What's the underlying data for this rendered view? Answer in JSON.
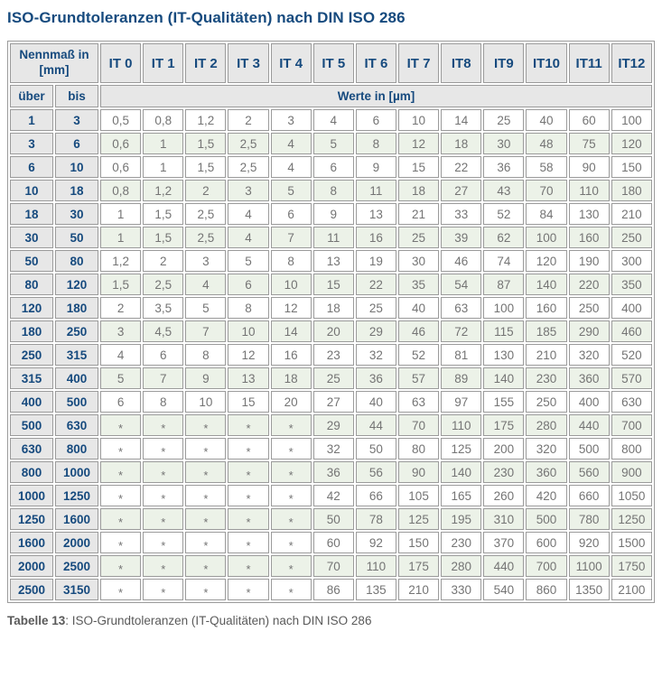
{
  "title": "ISO-Grundtoleranzen (IT-Qualitäten) nach DIN ISO 286",
  "table": {
    "nominal_header": "Nennmaß in [mm]",
    "it_headers": [
      "IT 0",
      "IT 1",
      "IT 2",
      "IT 3",
      "IT 4",
      "IT 5",
      "IT 6",
      "IT 7",
      "IT8",
      "IT9",
      "IT10",
      "IT11",
      "IT12"
    ],
    "sub_headers": {
      "over": "über",
      "to": "bis",
      "values": "Werte in [µm]"
    },
    "rows": [
      {
        "over": "1",
        "to": "3",
        "values": [
          "0,5",
          "0,8",
          "1,2",
          "2",
          "3",
          "4",
          "6",
          "10",
          "14",
          "25",
          "40",
          "60",
          "100"
        ]
      },
      {
        "over": "3",
        "to": "6",
        "values": [
          "0,6",
          "1",
          "1,5",
          "2,5",
          "4",
          "5",
          "8",
          "12",
          "18",
          "30",
          "48",
          "75",
          "120"
        ]
      },
      {
        "over": "6",
        "to": "10",
        "values": [
          "0,6",
          "1",
          "1,5",
          "2,5",
          "4",
          "6",
          "9",
          "15",
          "22",
          "36",
          "58",
          "90",
          "150"
        ]
      },
      {
        "over": "10",
        "to": "18",
        "values": [
          "0,8",
          "1,2",
          "2",
          "3",
          "5",
          "8",
          "11",
          "18",
          "27",
          "43",
          "70",
          "110",
          "180"
        ]
      },
      {
        "over": "18",
        "to": "30",
        "values": [
          "1",
          "1,5",
          "2,5",
          "4",
          "6",
          "9",
          "13",
          "21",
          "33",
          "52",
          "84",
          "130",
          "210"
        ]
      },
      {
        "over": "30",
        "to": "50",
        "values": [
          "1",
          "1,5",
          "2,5",
          "4",
          "7",
          "11",
          "16",
          "25",
          "39",
          "62",
          "100",
          "160",
          "250"
        ]
      },
      {
        "over": "50",
        "to": "80",
        "values": [
          "1,2",
          "2",
          "3",
          "5",
          "8",
          "13",
          "19",
          "30",
          "46",
          "74",
          "120",
          "190",
          "300"
        ]
      },
      {
        "over": "80",
        "to": "120",
        "values": [
          "1,5",
          "2,5",
          "4",
          "6",
          "10",
          "15",
          "22",
          "35",
          "54",
          "87",
          "140",
          "220",
          "350"
        ]
      },
      {
        "over": "120",
        "to": "180",
        "values": [
          "2",
          "3,5",
          "5",
          "8",
          "12",
          "18",
          "25",
          "40",
          "63",
          "100",
          "160",
          "250",
          "400"
        ]
      },
      {
        "over": "180",
        "to": "250",
        "values": [
          "3",
          "4,5",
          "7",
          "10",
          "14",
          "20",
          "29",
          "46",
          "72",
          "115",
          "185",
          "290",
          "460"
        ]
      },
      {
        "over": "250",
        "to": "315",
        "values": [
          "4",
          "6",
          "8",
          "12",
          "16",
          "23",
          "32",
          "52",
          "81",
          "130",
          "210",
          "320",
          "520"
        ]
      },
      {
        "over": "315",
        "to": "400",
        "values": [
          "5",
          "7",
          "9",
          "13",
          "18",
          "25",
          "36",
          "57",
          "89",
          "140",
          "230",
          "360",
          "570"
        ]
      },
      {
        "over": "400",
        "to": "500",
        "values": [
          "6",
          "8",
          "10",
          "15",
          "20",
          "27",
          "40",
          "63",
          "97",
          "155",
          "250",
          "400",
          "630"
        ]
      },
      {
        "over": "500",
        "to": "630",
        "values": [
          "*",
          "*",
          "*",
          "*",
          "*",
          "29",
          "44",
          "70",
          "110",
          "175",
          "280",
          "440",
          "700"
        ]
      },
      {
        "over": "630",
        "to": "800",
        "values": [
          "*",
          "*",
          "*",
          "*",
          "*",
          "32",
          "50",
          "80",
          "125",
          "200",
          "320",
          "500",
          "800"
        ]
      },
      {
        "over": "800",
        "to": "1000",
        "values": [
          "*",
          "*",
          "*",
          "*",
          "*",
          "36",
          "56",
          "90",
          "140",
          "230",
          "360",
          "560",
          "900"
        ]
      },
      {
        "over": "1000",
        "to": "1250",
        "values": [
          "*",
          "*",
          "*",
          "*",
          "*",
          "42",
          "66",
          "105",
          "165",
          "260",
          "420",
          "660",
          "1050"
        ]
      },
      {
        "over": "1250",
        "to": "1600",
        "values": [
          "*",
          "*",
          "*",
          "*",
          "*",
          "50",
          "78",
          "125",
          "195",
          "310",
          "500",
          "780",
          "1250"
        ]
      },
      {
        "over": "1600",
        "to": "2000",
        "values": [
          "*",
          "*",
          "*",
          "*",
          "*",
          "60",
          "92",
          "150",
          "230",
          "370",
          "600",
          "920",
          "1500"
        ]
      },
      {
        "over": "2000",
        "to": "2500",
        "values": [
          "*",
          "*",
          "*",
          "*",
          "*",
          "70",
          "110",
          "175",
          "280",
          "440",
          "700",
          "1100",
          "1750"
        ]
      },
      {
        "over": "2500",
        "to": "3150",
        "values": [
          "*",
          "*",
          "*",
          "*",
          "*",
          "86",
          "135",
          "210",
          "330",
          "540",
          "860",
          "1350",
          "2100"
        ]
      }
    ]
  },
  "caption": {
    "label": "Tabelle 13",
    "text": ": ISO-Grundtoleranzen (IT-Qualitäten) nach DIN ISO 286"
  },
  "colors": {
    "heading": "#164a7e",
    "header_bg": "#e7e7e7",
    "stripe_green": "#ecf2e8",
    "border": "#9b9b9b",
    "value_text": "#747474",
    "caption_text": "#5a5a5a"
  }
}
